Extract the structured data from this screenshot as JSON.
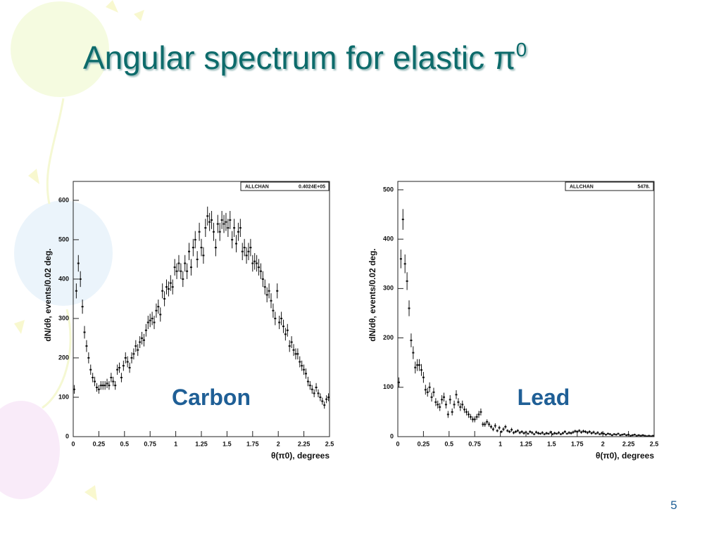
{
  "title": {
    "text": "Angular spectrum for elastic π",
    "superscript": "0"
  },
  "page_number": "5",
  "chart_data": [
    {
      "type": "scatter",
      "annotation": "Carbon",
      "y_label": "dN/dθ, events/0.02 deg.",
      "x_label": "θ(π0), degrees",
      "stats": {
        "name": "ALLCHAN",
        "value": "0.4024E+05"
      },
      "color": "#111111",
      "xlim": [
        0,
        2.5
      ],
      "ylim": [
        0,
        648
      ],
      "xticks": [
        0,
        0.25,
        0.5,
        0.75,
        1,
        1.25,
        1.5,
        1.75,
        2,
        2.25,
        2.5
      ],
      "yticks": [
        0,
        100,
        200,
        300,
        400,
        500,
        600
      ],
      "x": [
        0.01,
        0.03,
        0.05,
        0.07,
        0.09,
        0.11,
        0.13,
        0.15,
        0.17,
        0.19,
        0.21,
        0.23,
        0.25,
        0.27,
        0.29,
        0.31,
        0.33,
        0.35,
        0.37,
        0.39,
        0.41,
        0.43,
        0.45,
        0.47,
        0.49,
        0.51,
        0.53,
        0.55,
        0.57,
        0.59,
        0.61,
        0.63,
        0.65,
        0.67,
        0.69,
        0.71,
        0.73,
        0.75,
        0.77,
        0.79,
        0.81,
        0.83,
        0.85,
        0.87,
        0.89,
        0.91,
        0.93,
        0.95,
        0.97,
        0.99,
        1.01,
        1.03,
        1.05,
        1.07,
        1.09,
        1.11,
        1.13,
        1.15,
        1.17,
        1.19,
        1.21,
        1.23,
        1.25,
        1.27,
        1.29,
        1.31,
        1.33,
        1.35,
        1.37,
        1.39,
        1.41,
        1.43,
        1.45,
        1.47,
        1.49,
        1.51,
        1.53,
        1.55,
        1.57,
        1.59,
        1.61,
        1.63,
        1.65,
        1.67,
        1.69,
        1.71,
        1.73,
        1.75,
        1.77,
        1.79,
        1.81,
        1.83,
        1.85,
        1.87,
        1.89,
        1.91,
        1.93,
        1.95,
        1.97,
        1.99,
        2.01,
        2.03,
        2.05,
        2.07,
        2.09,
        2.11,
        2.13,
        2.15,
        2.17,
        2.19,
        2.21,
        2.23,
        2.25,
        2.27,
        2.29,
        2.31,
        2.33,
        2.35,
        2.37,
        2.39,
        2.41,
        2.43,
        2.45,
        2.47,
        2.49
      ],
      "values": [
        120,
        370,
        440,
        400,
        330,
        265,
        230,
        200,
        170,
        150,
        140,
        125,
        120,
        130,
        130,
        130,
        135,
        130,
        150,
        140,
        130,
        170,
        175,
        150,
        180,
        200,
        190,
        175,
        200,
        210,
        230,
        220,
        240,
        250,
        245,
        270,
        290,
        295,
        300,
        290,
        320,
        330,
        310,
        370,
        350,
        380,
        375,
        390,
        380,
        430,
        420,
        440,
        420,
        400,
        440,
        420,
        470,
        430,
        480,
        500,
        450,
        520,
        480,
        460,
        530,
        560,
        545,
        550,
        520,
        480,
        540,
        520,
        550,
        540,
        545,
        530,
        550,
        500,
        530,
        490,
        520,
        530,
        470,
        480,
        460,
        470,
        480,
        440,
        445,
        440,
        430,
        420,
        400,
        380,
        360,
        370,
        345,
        320,
        300,
        370,
        290,
        300,
        280,
        260,
        270,
        230,
        240,
        220,
        210,
        210,
        190,
        180,
        170,
        160,
        140,
        130,
        120,
        110,
        125,
        110,
        100,
        90,
        80,
        95,
        100
      ],
      "errors": [
        11,
        19,
        21,
        20,
        18,
        16,
        15,
        14,
        13,
        12,
        12,
        11,
        11,
        11,
        11,
        11,
        12,
        11,
        12,
        12,
        11,
        13,
        13,
        12,
        13,
        14,
        14,
        13,
        14,
        14,
        15,
        15,
        15,
        16,
        16,
        16,
        17,
        17,
        17,
        17,
        18,
        18,
        18,
        19,
        19,
        19,
        19,
        20,
        19,
        21,
        20,
        21,
        20,
        20,
        21,
        20,
        22,
        21,
        22,
        22,
        21,
        23,
        22,
        21,
        23,
        24,
        23,
        23,
        23,
        22,
        23,
        23,
        23,
        23,
        23,
        23,
        23,
        22,
        23,
        22,
        23,
        23,
        22,
        22,
        21,
        22,
        22,
        21,
        21,
        21,
        21,
        20,
        20,
        19,
        19,
        19,
        19,
        18,
        17,
        19,
        17,
        17,
        17,
        16,
        16,
        15,
        15,
        15,
        14,
        14,
        14,
        13,
        13,
        13,
        12,
        11,
        11,
        10,
        11,
        10,
        10,
        9,
        9,
        10,
        10
      ]
    },
    {
      "type": "scatter",
      "annotation": "Lead",
      "y_label": "dN/dθ, events/0.02 deg.",
      "x_label": "θ(π0), degrees",
      "stats": {
        "name": "ALLCHAN",
        "value": "5478."
      },
      "color": "#111111",
      "xlim": [
        0,
        2.5
      ],
      "ylim": [
        0,
        517
      ],
      "xticks": [
        0,
        0.25,
        0.5,
        0.75,
        1,
        1.25,
        1.5,
        1.75,
        2,
        2.25,
        2.5
      ],
      "yticks": [
        0,
        100,
        200,
        300,
        400,
        500
      ],
      "x": [
        0.01,
        0.03,
        0.05,
        0.07,
        0.09,
        0.11,
        0.13,
        0.15,
        0.17,
        0.19,
        0.21,
        0.23,
        0.25,
        0.27,
        0.29,
        0.31,
        0.33,
        0.35,
        0.37,
        0.39,
        0.41,
        0.43,
        0.45,
        0.47,
        0.49,
        0.51,
        0.53,
        0.55,
        0.57,
        0.59,
        0.61,
        0.63,
        0.65,
        0.67,
        0.69,
        0.71,
        0.73,
        0.75,
        0.77,
        0.79,
        0.81,
        0.83,
        0.85,
        0.87,
        0.89,
        0.91,
        0.93,
        0.95,
        0.97,
        0.99,
        1.01,
        1.03,
        1.05,
        1.07,
        1.09,
        1.11,
        1.13,
        1.15,
        1.17,
        1.19,
        1.21,
        1.23,
        1.25,
        1.27,
        1.29,
        1.31,
        1.33,
        1.35,
        1.37,
        1.39,
        1.41,
        1.43,
        1.45,
        1.47,
        1.49,
        1.51,
        1.53,
        1.55,
        1.57,
        1.59,
        1.61,
        1.63,
        1.65,
        1.67,
        1.69,
        1.71,
        1.73,
        1.75,
        1.77,
        1.79,
        1.81,
        1.83,
        1.85,
        1.87,
        1.89,
        1.91,
        1.93,
        1.95,
        1.97,
        1.99,
        2.01,
        2.03,
        2.05,
        2.07,
        2.09,
        2.11,
        2.13,
        2.15,
        2.17,
        2.19,
        2.21,
        2.23,
        2.25,
        2.27,
        2.29,
        2.31,
        2.33,
        2.35,
        2.37,
        2.39,
        2.41,
        2.43,
        2.45,
        2.47,
        2.49
      ],
      "values": [
        110,
        360,
        440,
        350,
        315,
        260,
        195,
        170,
        140,
        145,
        145,
        135,
        120,
        95,
        90,
        100,
        80,
        90,
        70,
        65,
        60,
        75,
        80,
        65,
        45,
        75,
        50,
        65,
        85,
        70,
        60,
        65,
        55,
        50,
        45,
        40,
        35,
        35,
        40,
        45,
        50,
        25,
        25,
        30,
        25,
        20,
        15,
        22,
        12,
        18,
        10,
        15,
        20,
        12,
        10,
        14,
        8,
        10,
        12,
        8,
        10,
        7,
        9,
        6,
        10,
        8,
        5,
        9,
        7,
        6,
        8,
        5,
        7,
        6,
        9,
        5,
        7,
        6,
        8,
        5,
        7,
        10,
        6,
        8,
        7,
        9,
        11,
        10,
        12,
        9,
        11,
        10,
        8,
        10,
        7,
        9,
        6,
        8,
        5,
        7,
        6,
        4,
        6,
        5,
        3,
        5,
        4,
        6,
        3,
        4,
        5,
        3,
        4,
        2,
        3,
        4,
        2,
        3,
        2,
        3,
        2,
        1,
        2,
        1,
        2
      ],
      "errors": [
        10,
        19,
        21,
        19,
        18,
        16,
        14,
        13,
        12,
        12,
        12,
        12,
        11,
        10,
        9,
        10,
        9,
        9,
        8,
        8,
        8,
        9,
        9,
        8,
        7,
        9,
        7,
        8,
        9,
        8,
        8,
        8,
        7,
        7,
        7,
        6,
        6,
        6,
        6,
        7,
        7,
        5,
        5,
        5,
        5,
        4,
        4,
        5,
        3,
        4,
        3,
        4,
        4,
        3,
        3,
        4,
        3,
        3,
        3,
        3,
        3,
        3,
        3,
        2,
        3,
        3,
        2,
        3,
        3,
        2,
        3,
        2,
        3,
        2,
        3,
        2,
        3,
        2,
        3,
        2,
        3,
        3,
        2,
        3,
        3,
        3,
        3,
        3,
        3,
        3,
        3,
        3,
        3,
        3,
        3,
        3,
        2,
        3,
        2,
        3,
        2,
        2,
        2,
        2,
        2,
        2,
        2,
        2,
        2,
        2,
        2,
        2,
        2,
        1,
        2,
        2,
        1,
        2,
        1,
        2,
        1,
        1,
        1,
        1,
        1
      ]
    }
  ]
}
